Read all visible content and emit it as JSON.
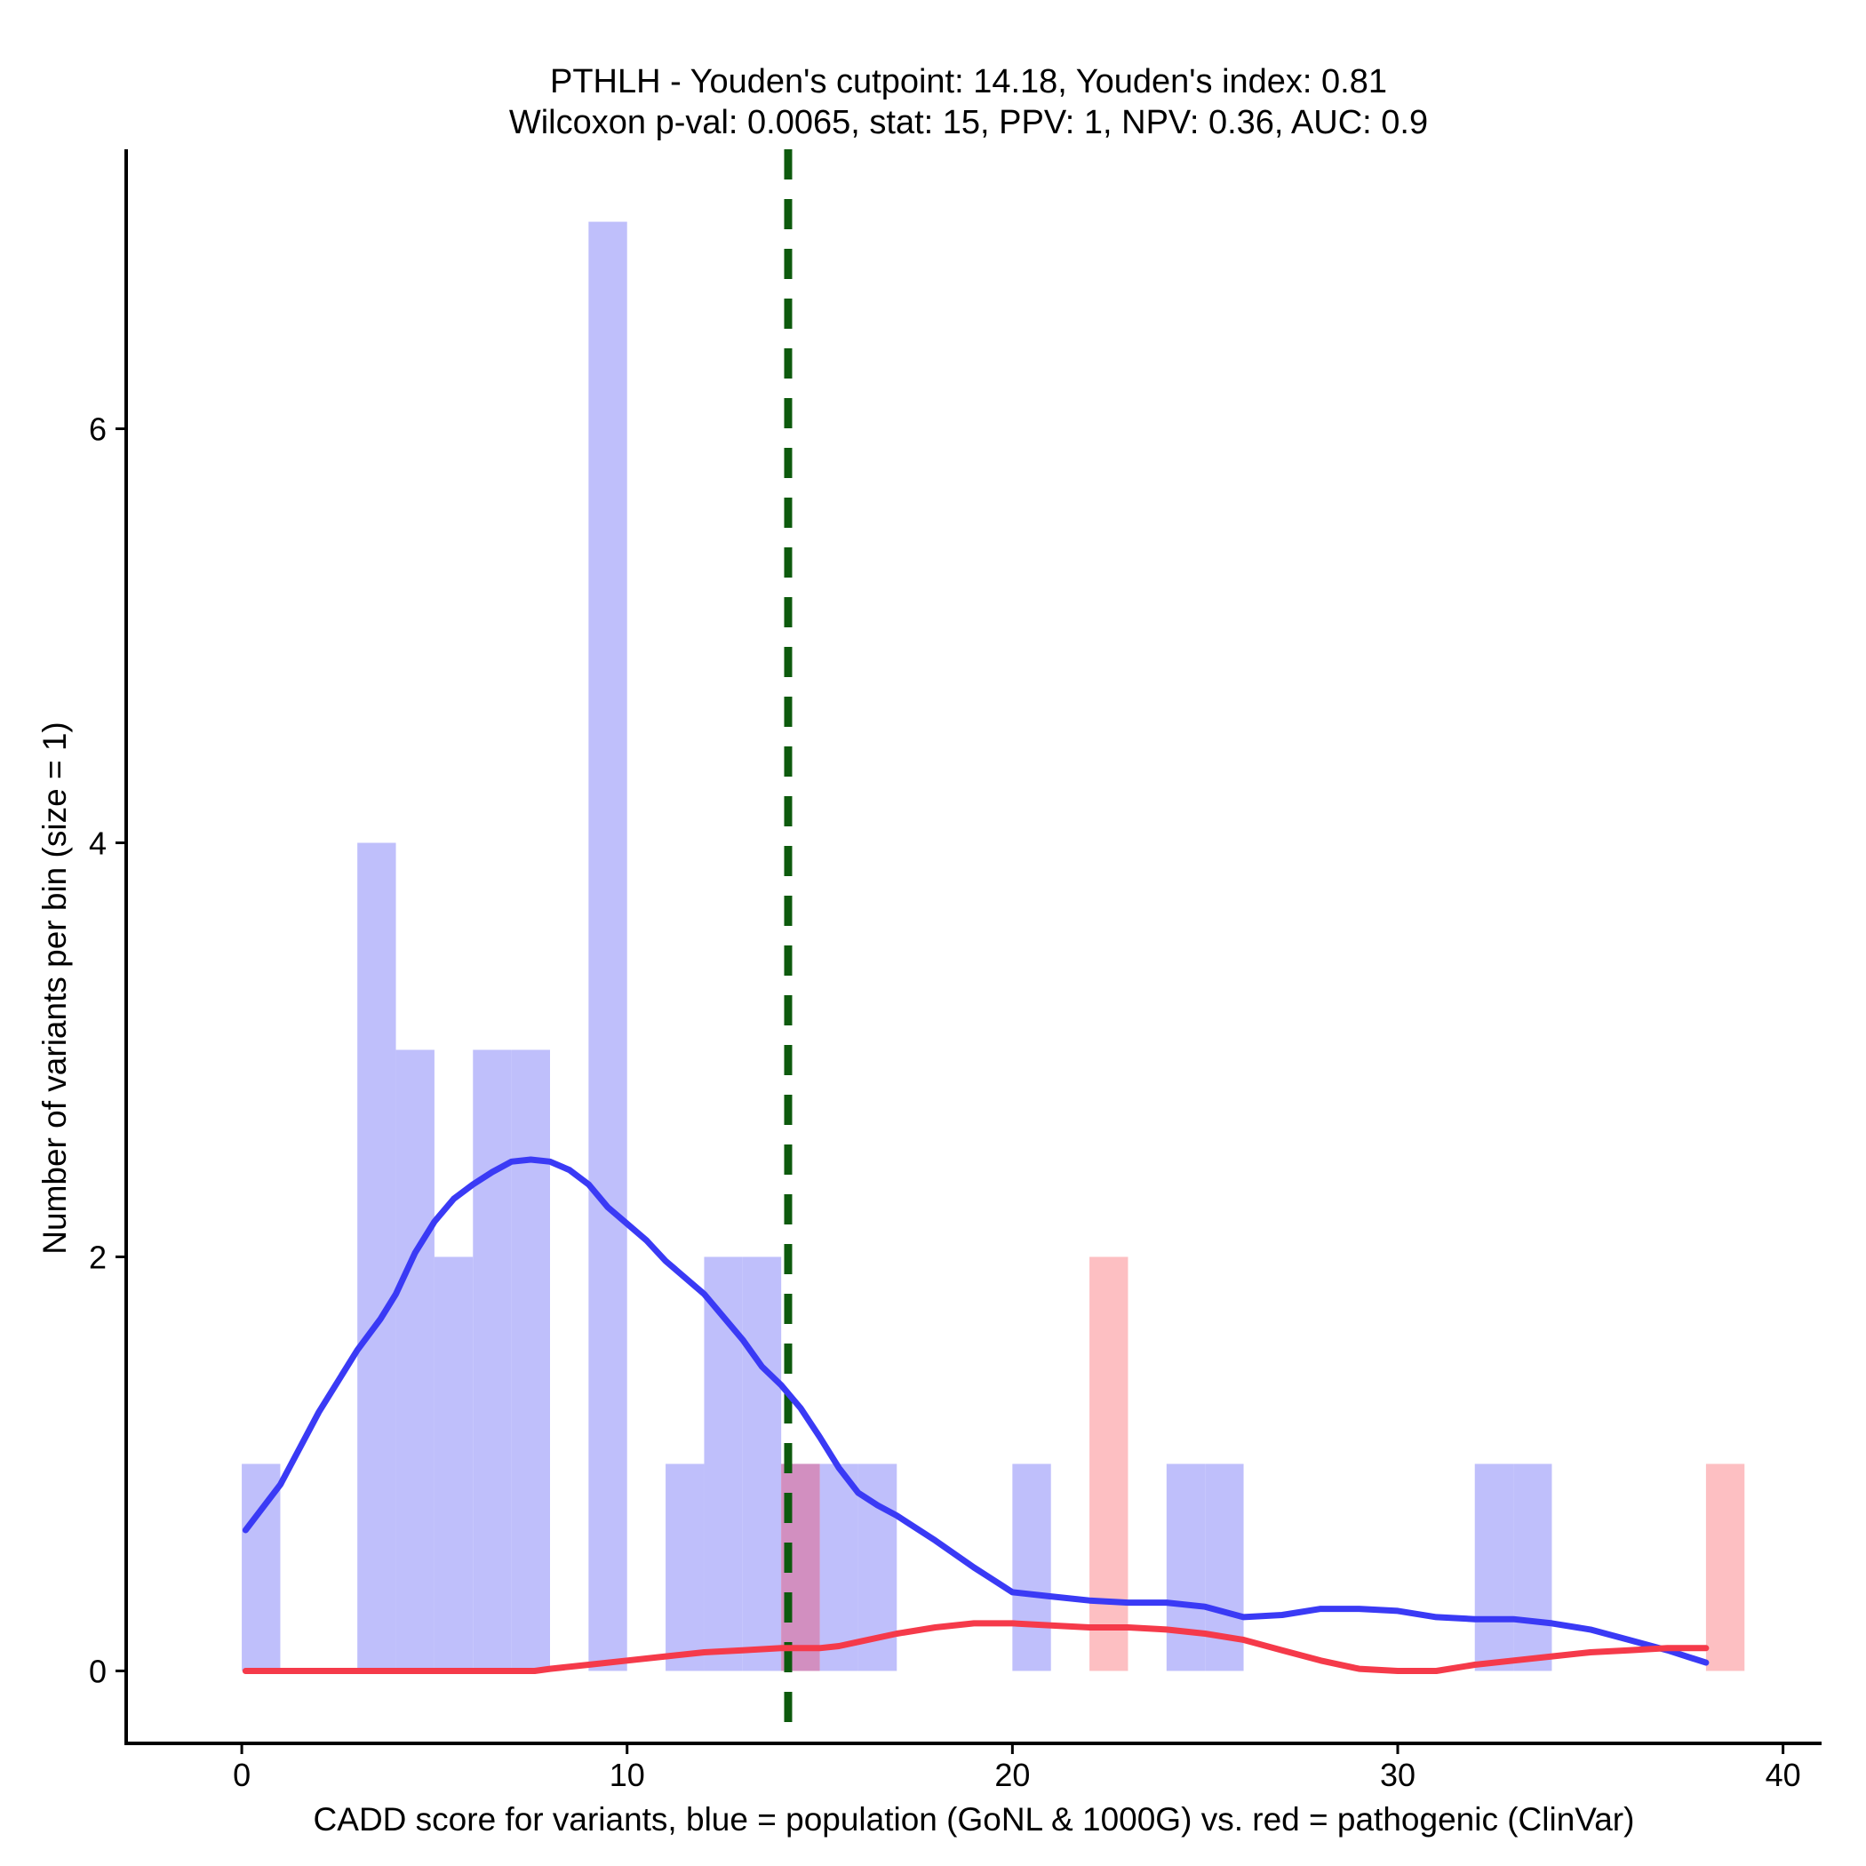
{
  "chart_data": {
    "type": "bar",
    "title_lines": [
      "PTHLH - Youden's cutpoint: 14.18, Youden's index: 0.81",
      "Wilcoxon p-val: 0.0065, stat: 15, PPV: 1, NPV: 0.36, AUC: 0.9"
    ],
    "xlabel": "CADD score for variants, blue = population (GoNL & 1000G) vs. red = pathogenic (ClinVar)",
    "ylabel": "Number of variants per bin (size = 1)",
    "xlim": [
      -3,
      41
    ],
    "ylim": [
      -0.35,
      7.35
    ],
    "x_ticks": [
      0,
      10,
      20,
      30,
      40
    ],
    "y_ticks": [
      0,
      2,
      4,
      6
    ],
    "bin_size": 1,
    "cutpoint": 14.18,
    "colors": {
      "population_bar": "#bfbffb",
      "pathogenic_bar": "#fdbfc2",
      "overlap_bar": "#d28fc0",
      "population_line": "#3a3af5",
      "pathogenic_line": "#f53a4a",
      "cutpoint_line": "#0d5a0d"
    },
    "series": [
      {
        "name": "population (GoNL & 1000G)",
        "bins": [
          {
            "start": 0,
            "count": 1
          },
          {
            "start": 3,
            "count": 4
          },
          {
            "start": 4,
            "count": 3
          },
          {
            "start": 5,
            "count": 2
          },
          {
            "start": 6,
            "count": 3
          },
          {
            "start": 7,
            "count": 3
          },
          {
            "start": 9,
            "count": 7
          },
          {
            "start": 11,
            "count": 1
          },
          {
            "start": 12,
            "count": 2
          },
          {
            "start": 13,
            "count": 2
          },
          {
            "start": 14,
            "count": 1
          },
          {
            "start": 15,
            "count": 1
          },
          {
            "start": 16,
            "count": 1
          },
          {
            "start": 20,
            "count": 1
          },
          {
            "start": 24,
            "count": 1
          },
          {
            "start": 25,
            "count": 1
          },
          {
            "start": 32,
            "count": 1
          },
          {
            "start": 33,
            "count": 1
          }
        ],
        "density": [
          [
            0.1,
            0.68
          ],
          [
            1.0,
            0.9
          ],
          [
            2.0,
            1.25
          ],
          [
            3.0,
            1.55
          ],
          [
            3.6,
            1.7
          ],
          [
            4.0,
            1.82
          ],
          [
            4.5,
            2.02
          ],
          [
            5.0,
            2.17
          ],
          [
            5.5,
            2.28
          ],
          [
            6.0,
            2.35
          ],
          [
            6.5,
            2.41
          ],
          [
            7.0,
            2.46
          ],
          [
            7.5,
            2.47
          ],
          [
            8.0,
            2.46
          ],
          [
            8.5,
            2.42
          ],
          [
            9.0,
            2.35
          ],
          [
            9.5,
            2.24
          ],
          [
            10.0,
            2.16
          ],
          [
            10.5,
            2.08
          ],
          [
            11.0,
            1.98
          ],
          [
            12.0,
            1.82
          ],
          [
            13.0,
            1.6
          ],
          [
            13.5,
            1.47
          ],
          [
            14.0,
            1.38
          ],
          [
            14.5,
            1.27
          ],
          [
            15.0,
            1.13
          ],
          [
            15.5,
            0.98
          ],
          [
            16.0,
            0.86
          ],
          [
            16.5,
            0.8
          ],
          [
            17.0,
            0.75
          ],
          [
            18.0,
            0.63
          ],
          [
            19.0,
            0.5
          ],
          [
            19.5,
            0.44
          ],
          [
            20.0,
            0.38
          ],
          [
            21.0,
            0.36
          ],
          [
            22.0,
            0.34
          ],
          [
            23.0,
            0.33
          ],
          [
            24.0,
            0.33
          ],
          [
            25.0,
            0.31
          ],
          [
            26.0,
            0.26
          ],
          [
            27.0,
            0.27
          ],
          [
            28.0,
            0.3
          ],
          [
            29.0,
            0.3
          ],
          [
            30.0,
            0.29
          ],
          [
            31.0,
            0.26
          ],
          [
            32.0,
            0.25
          ],
          [
            33.0,
            0.25
          ],
          [
            34.0,
            0.23
          ],
          [
            35.0,
            0.2
          ],
          [
            36.0,
            0.15
          ],
          [
            37.0,
            0.1
          ],
          [
            38.0,
            0.04
          ]
        ]
      },
      {
        "name": "pathogenic (ClinVar)",
        "bins": [
          {
            "start": 14,
            "count": 1
          },
          {
            "start": 22,
            "count": 2
          },
          {
            "start": 38,
            "count": 1
          }
        ],
        "density": [
          [
            0.1,
            0.0
          ],
          [
            7.6,
            0.0
          ],
          [
            8.0,
            0.01
          ],
          [
            9.0,
            0.03
          ],
          [
            10.0,
            0.05
          ],
          [
            11.0,
            0.07
          ],
          [
            12.0,
            0.09
          ],
          [
            13.0,
            0.1
          ],
          [
            14.0,
            0.11
          ],
          [
            15.0,
            0.11
          ],
          [
            15.5,
            0.12
          ],
          [
            16.0,
            0.14
          ],
          [
            17.0,
            0.18
          ],
          [
            18.0,
            0.21
          ],
          [
            19.0,
            0.23
          ],
          [
            20.0,
            0.23
          ],
          [
            21.0,
            0.22
          ],
          [
            22.0,
            0.21
          ],
          [
            23.0,
            0.21
          ],
          [
            24.0,
            0.2
          ],
          [
            25.0,
            0.18
          ],
          [
            26.0,
            0.15
          ],
          [
            27.0,
            0.1
          ],
          [
            28.0,
            0.05
          ],
          [
            29.0,
            0.01
          ],
          [
            30.0,
            0.0
          ],
          [
            31.0,
            0.0
          ],
          [
            32.0,
            0.03
          ],
          [
            33.0,
            0.05
          ],
          [
            34.0,
            0.07
          ],
          [
            35.0,
            0.09
          ],
          [
            36.0,
            0.1
          ],
          [
            37.0,
            0.11
          ],
          [
            38.0,
            0.11
          ]
        ]
      }
    ]
  }
}
